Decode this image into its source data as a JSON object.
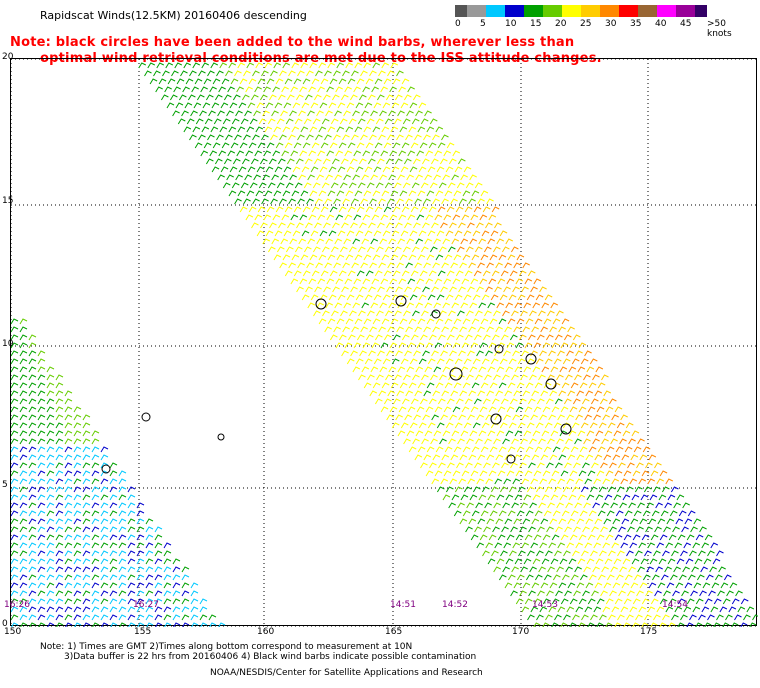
{
  "title": "Rapidscat Winds(12.5KM) 20160406 descending",
  "notes": {
    "line1": "Note: black circles have been added to the wind barbs, wherever less than",
    "line2": "optimal wind retrieval conditions are met due to the ISS attitude changes."
  },
  "legend": {
    "colors": [
      "#555555",
      "#999999",
      "#00c8ff",
      "#0000cc",
      "#00a000",
      "#66cc00",
      "#ffff00",
      "#ffcc00",
      "#ff8800",
      "#ff0000",
      "#996633",
      "#ff00ff",
      "#990099",
      "#330066"
    ],
    "labels": [
      "0",
      "5",
      "10",
      "15",
      "20",
      "25",
      "30",
      "35",
      "40",
      "45",
      ">50 knots"
    ]
  },
  "axes": {
    "x_ticks": [
      "150",
      "155",
      "160",
      "165",
      "170",
      "175"
    ],
    "y_ticks": [
      "0",
      "5",
      "10",
      "15",
      "20"
    ]
  },
  "pass_times": [
    "16:26",
    "16:27",
    "14:51",
    "14:52",
    "14:53",
    "14:54"
  ],
  "footnotes": {
    "line1": "Note: 1) Times are GMT 2)Times along bottom correspond to measurement at 10N",
    "line2": "3)Data buffer is 22 hrs from 20160406 4) Black wind barbs indicate possible contamination"
  },
  "credit": "NOAA/NESDIS/Center for Satellite Applications and Research"
}
